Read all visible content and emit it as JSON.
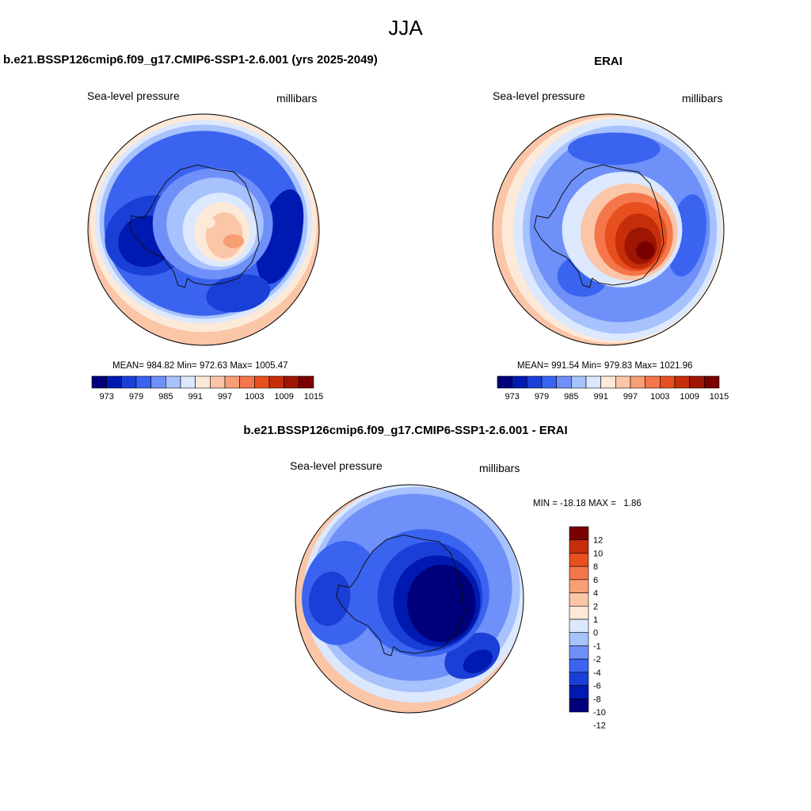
{
  "page": {
    "season": "JJA",
    "model_case_title": "b.e21.BSSP126cmip6.f09_g17.CMIP6-SSP1-2.6.001 (yrs 2025-2049)",
    "obs_title": "ERAI",
    "diff_title": "b.e21.BSSP126cmip6.f09_g17.CMIP6-SSP1-2.6.001 - ERAI"
  },
  "colors": {
    "abs_palette": [
      "#00007a",
      "#0019b0",
      "#1a3fd6",
      "#3a64f0",
      "#6e90f8",
      "#a7c2fc",
      "#dbe8fe",
      "#fde9d8",
      "#fbc5a8",
      "#f89e75",
      "#f5764a",
      "#e84f1e",
      "#c62e0b",
      "#9e1504",
      "#7a0000"
    ],
    "diff_palette": [
      "#00007a",
      "#0019b0",
      "#1a3fd6",
      "#3a64f0",
      "#6e90f8",
      "#a7c2fc",
      "#dbe8fe",
      "#fde9d8",
      "#fbc5a8",
      "#f89e75",
      "#f5764a",
      "#e84f1e",
      "#c62e0b",
      "#7a0000"
    ]
  },
  "chart_data": [
    {
      "type": "heatmap",
      "id": "model",
      "title": "b.e21.BSSP126cmip6.f09_g17.CMIP6-SSP1-2.6.001 (yrs 2025-2049)",
      "left_label": "Sea-level pressure",
      "right_label": "millibars",
      "projection": "south polar stereographic",
      "stats": {
        "text": "MEAN= 984.82  Min= 972.63  Max= 1005.47",
        "mean": 984.82,
        "min": 972.63,
        "max": 1005.47
      },
      "levels": [
        973,
        976,
        979,
        982,
        985,
        988,
        991,
        994,
        997,
        1000,
        1003,
        1006,
        1009,
        1012,
        1015
      ],
      "colorbar_tick_labels": [
        "973",
        "979",
        "985",
        "991",
        "997",
        "1003",
        "1009",
        "1015"
      ]
    },
    {
      "type": "heatmap",
      "id": "obs",
      "title": "ERAI",
      "left_label": "Sea-level pressure",
      "right_label": "millibars",
      "projection": "south polar stereographic",
      "stats": {
        "text": "MEAN= 991.54  Min= 979.83  Max= 1021.96",
        "mean": 991.54,
        "min": 979.83,
        "max": 1021.96
      },
      "levels": [
        973,
        976,
        979,
        982,
        985,
        988,
        991,
        994,
        997,
        1000,
        1003,
        1006,
        1009,
        1012,
        1015
      ],
      "colorbar_tick_labels": [
        "973",
        "979",
        "985",
        "991",
        "997",
        "1003",
        "1009",
        "1015"
      ]
    },
    {
      "type": "heatmap",
      "id": "diff",
      "title": "b.e21.BSSP126cmip6.f09_g17.CMIP6-SSP1-2.6.001 - ERAI",
      "left_label": "Sea-level pressure",
      "right_label": "millibars",
      "projection": "south polar stereographic",
      "stats": {
        "text": "MIN = -18.18 MAX =   1.86",
        "min": -18.18,
        "max": 1.86
      },
      "levels": [
        -12,
        -10,
        -8,
        -6,
        -4,
        -2,
        -1,
        0,
        1,
        2,
        4,
        6,
        8,
        10,
        12
      ],
      "colorbar_tick_labels": [
        "12",
        "10",
        "8",
        "6",
        "4",
        "2",
        "1",
        "0",
        "-1",
        "-2",
        "-4",
        "-6",
        "-8",
        "-10",
        "-12"
      ]
    }
  ]
}
